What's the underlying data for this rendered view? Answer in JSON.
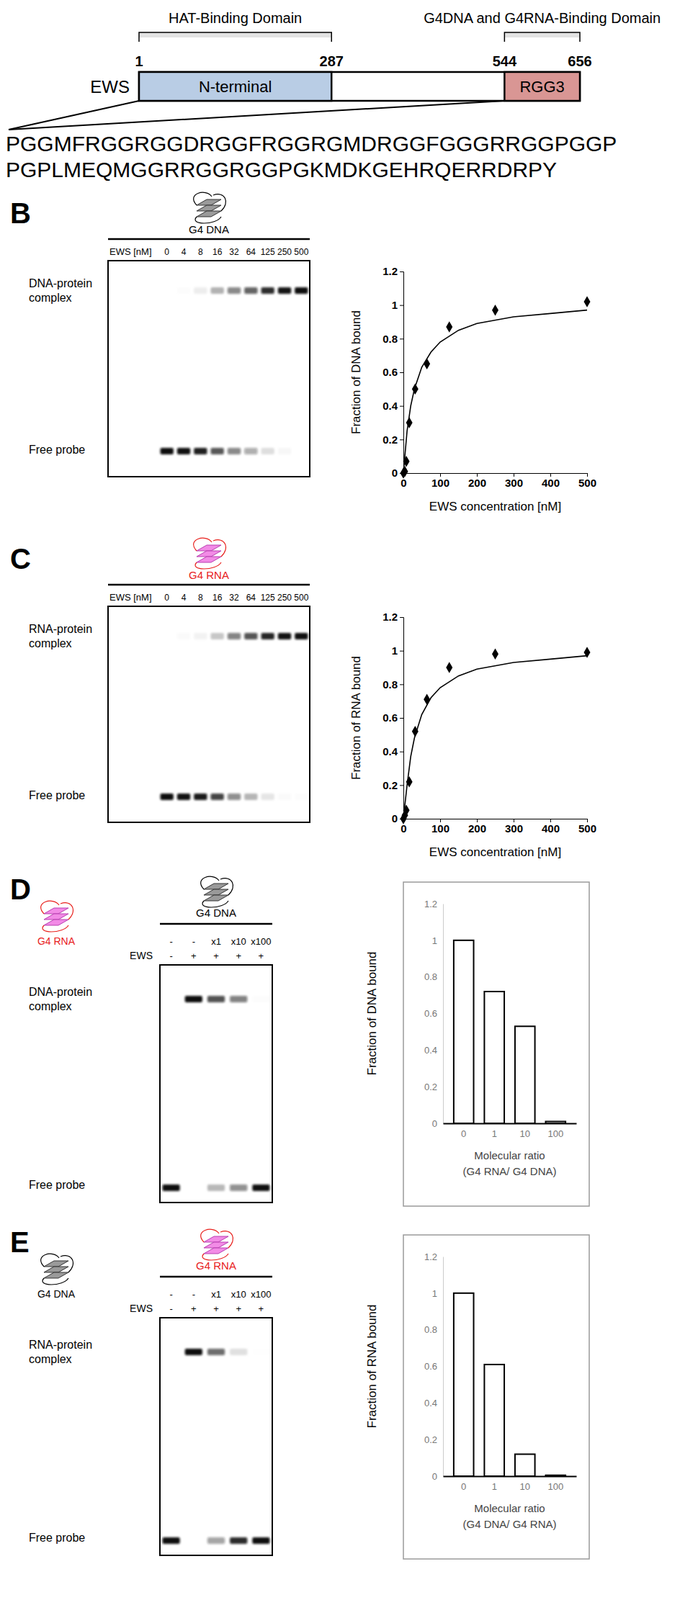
{
  "figure": {
    "panel_letters": [
      "B",
      "C",
      "D",
      "E"
    ]
  },
  "diagram": {
    "protein": "EWS",
    "domains": [
      {
        "label": "N-terminal",
        "start": 1,
        "end": 287,
        "function": "HAT-Binding Domain",
        "color": "#b9cde5"
      },
      {
        "label": "RGG3",
        "start": 544,
        "end": 656,
        "function": "G4DNA and G4RNA-Binding Domain",
        "color": "#d99694"
      }
    ],
    "sequence": [
      "PGGMFRGGRGGDRGGFRGGRGMDRGGFGGGRRGGPGGP",
      "PGPLMEQMGGRRGGRGGPGKMDKGEHRQERRDRPY"
    ]
  },
  "gels": [
    {
      "probe": {
        "label": "G4 DNA",
        "color": "#000000"
      },
      "lane_header": "EWS [nM]",
      "complex_label": "DNA-protein complex",
      "free_label": "Free probe"
    },
    {
      "probe": {
        "label": "G4 RNA",
        "color": "#e8201c"
      },
      "lane_header": "EWS [nM]",
      "complex_label": "RNA-protein complex",
      "free_label": "Free probe"
    },
    {
      "probe": {
        "label": "G4 DNA",
        "color": "#000000"
      },
      "rows": [
        {
          "label": "G4 RNA",
          "color": "#e8201c",
          "values": [
            "-",
            "-",
            "x1",
            "x10",
            "x100"
          ]
        },
        {
          "label": "EWS",
          "color": "#000000",
          "values": [
            "-",
            "+",
            "+",
            "+",
            "+"
          ]
        }
      ],
      "complex_label": "DNA-protein complex",
      "free_label": "Free probe"
    },
    {
      "probe": {
        "label": "G4 RNA",
        "color": "#e8201c"
      },
      "rows": [
        {
          "label": "G4 DNA",
          "color": "#000000",
          "values": [
            "-",
            "-",
            "x1",
            "x10",
            "x100"
          ]
        },
        {
          "label": "EWS",
          "color": "#000000",
          "values": [
            "-",
            "+",
            "+",
            "+",
            "+"
          ]
        }
      ],
      "complex_label": "RNA-protein complex",
      "free_label": "Free probe"
    }
  ],
  "chart_data": [
    {
      "type": "scatter",
      "x_label": "EWS concentration [nM]",
      "y_label": "Fraction of DNA bound",
      "xlim": [
        0,
        500
      ],
      "xticks": [
        0,
        100,
        200,
        300,
        400,
        500
      ],
      "ylim": [
        0,
        1.2
      ],
      "yticks": [
        0,
        0.2,
        0.4,
        0.6,
        0.8,
        1,
        1.2
      ],
      "series": [
        {
          "type": "scatter",
          "marker": "diamond",
          "color": "#000000",
          "x": [
            0,
            4,
            8,
            16,
            32,
            64,
            125,
            250,
            500
          ],
          "values": [
            0,
            0.01,
            0.07,
            0.3,
            0.5,
            0.65,
            0.87,
            0.97,
            1.02
          ]
        },
        {
          "type": "line",
          "line_style": "solid",
          "color": "#000000",
          "x": [
            0,
            10,
            20,
            30,
            50,
            75,
            100,
            150,
            200,
            300,
            400,
            500
          ],
          "values": [
            0,
            0.25,
            0.4,
            0.5,
            0.63,
            0.72,
            0.78,
            0.85,
            0.89,
            0.93,
            0.95,
            0.97
          ]
        }
      ]
    },
    {
      "type": "scatter",
      "x_label": "EWS concentration [nM]",
      "y_label": "Fraction of RNA bound",
      "xlim": [
        0,
        500
      ],
      "xticks": [
        0,
        100,
        200,
        300,
        400,
        500
      ],
      "ylim": [
        0,
        1.2
      ],
      "yticks": [
        0,
        0.2,
        0.4,
        0.6,
        0.8,
        1,
        1.2
      ],
      "series": [
        {
          "type": "scatter",
          "marker": "diamond",
          "color": "#000000",
          "x": [
            0,
            4,
            8,
            16,
            32,
            64,
            125,
            250,
            500
          ],
          "values": [
            0,
            0.02,
            0.05,
            0.22,
            0.52,
            0.71,
            0.9,
            0.98,
            0.99
          ]
        },
        {
          "type": "line",
          "line_style": "solid",
          "color": "#000000",
          "x": [
            0,
            10,
            20,
            30,
            50,
            75,
            100,
            150,
            200,
            300,
            400,
            500
          ],
          "values": [
            0,
            0.2,
            0.37,
            0.48,
            0.62,
            0.72,
            0.78,
            0.85,
            0.89,
            0.93,
            0.95,
            0.97
          ]
        }
      ]
    },
    {
      "type": "bar",
      "x_label": "Molecular ratio (G4 RNA/ G4 DNA)",
      "y_label": "Fraction of DNA bound",
      "categories": [
        "0",
        "1",
        "10",
        "100"
      ],
      "values": [
        1,
        0.72,
        0.53,
        0.01
      ],
      "color": "#ffffff",
      "ylim": [
        0,
        1.2
      ],
      "yticks": [
        0,
        0.2,
        0.4,
        0.6,
        0.8,
        1,
        1.2
      ]
    },
    {
      "type": "bar",
      "x_label": "Molecular ratio (G4 DNA/ G4 RNA)",
      "y_label": "Fraction of RNA bound",
      "categories": [
        "0",
        "1",
        "10",
        "100"
      ],
      "values": [
        1,
        0.61,
        0.12,
        0.005
      ],
      "color": "#ffffff",
      "ylim": [
        0,
        1.2
      ],
      "yticks": [
        0,
        0.2,
        0.4,
        0.6,
        0.8,
        1,
        1.2
      ]
    }
  ]
}
